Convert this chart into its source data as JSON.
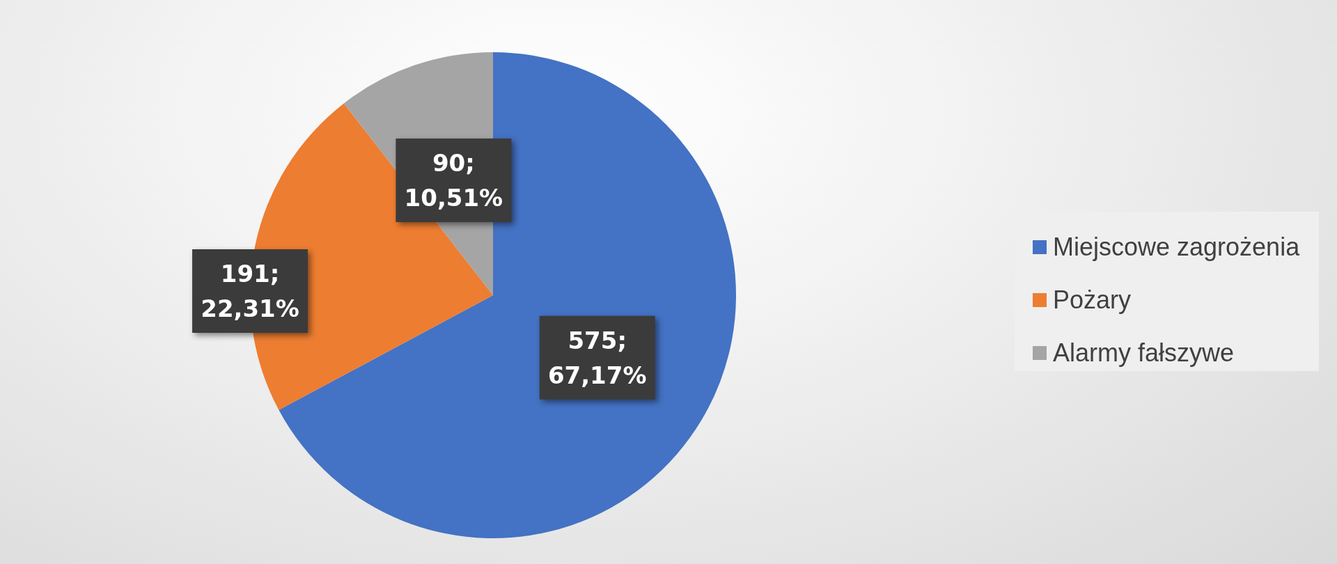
{
  "chart_data": {
    "type": "pie",
    "categories": [
      "Miejscowe zagrożenia",
      "Pożary",
      "Alarmy fałszywe"
    ],
    "values": [
      575,
      191,
      90
    ],
    "colors": [
      "#4472c4",
      "#ed7d31",
      "#a5a5a5"
    ],
    "value_labels": [
      "575; 67,17%",
      "191; 22,31%",
      "90; 10,51%"
    ],
    "legend": "right"
  }
}
